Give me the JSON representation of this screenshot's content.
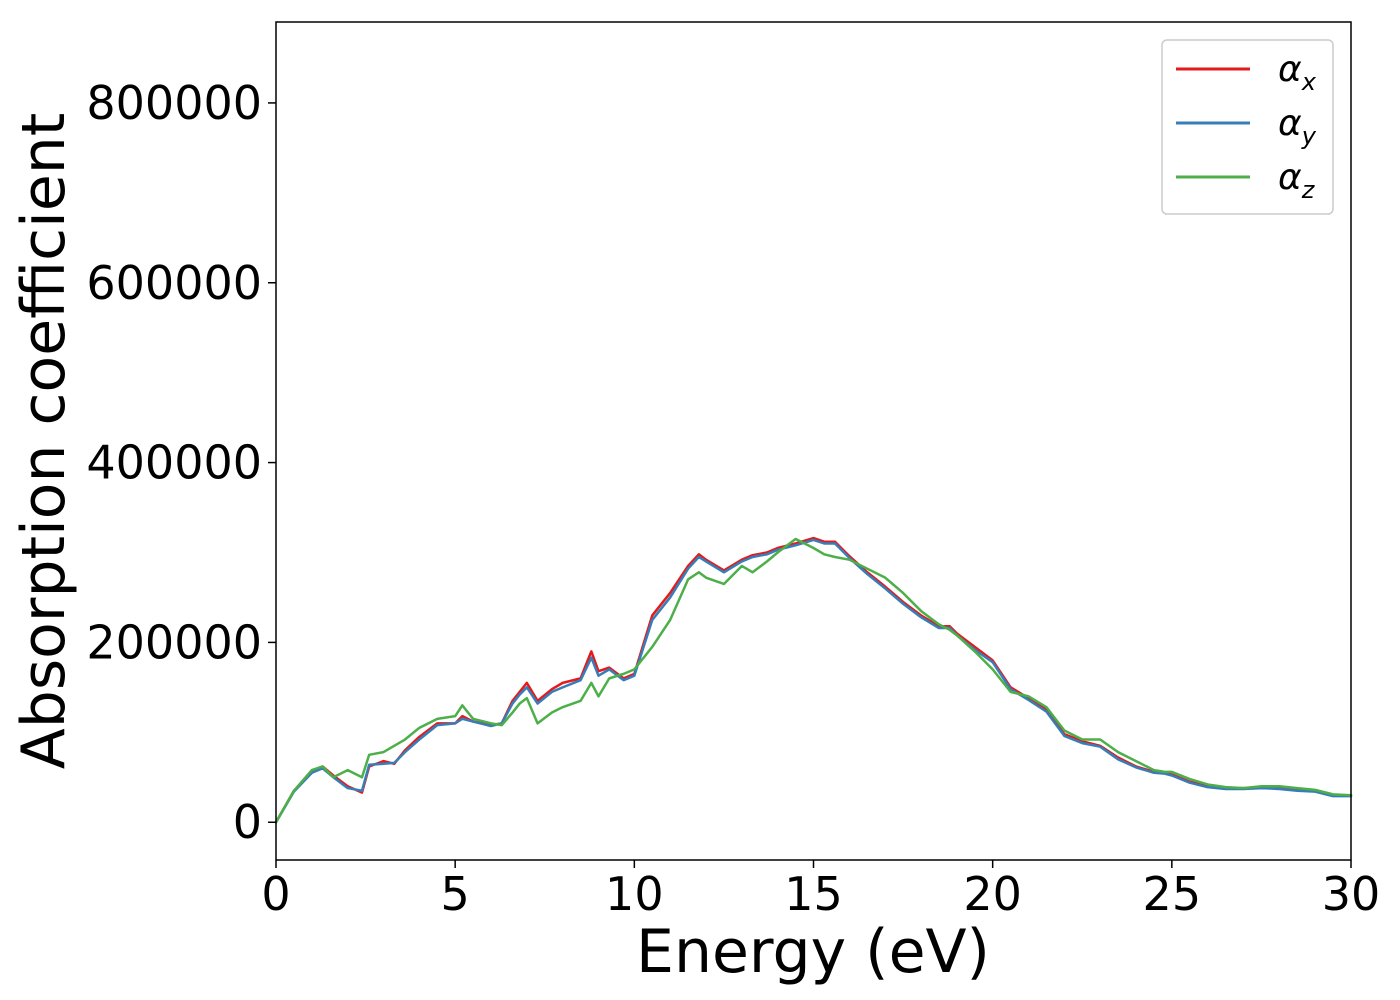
{
  "chart_data": {
    "type": "line",
    "title": "",
    "xlabel": "Energy (eV)",
    "ylabel": "Absorption coefficient",
    "xlim": [
      0,
      30
    ],
    "ylim": [
      -42000,
      890000
    ],
    "xticks": [
      0,
      5,
      10,
      15,
      20,
      25,
      30
    ],
    "yticks": [
      0,
      200000,
      400000,
      600000,
      800000
    ],
    "grid": false,
    "legend_position": "top-right",
    "x": [
      0,
      0.5,
      1,
      1.3,
      1.6,
      2,
      2.4,
      2.6,
      3,
      3.3,
      3.6,
      4,
      4.5,
      5,
      5.2,
      5.5,
      6,
      6.3,
      6.6,
      6.8,
      7,
      7.3,
      7.7,
      8,
      8.5,
      8.8,
      9,
      9.3,
      9.7,
      10,
      10.5,
      11,
      11.5,
      11.8,
      12,
      12.5,
      13,
      13.3,
      13.7,
      14,
      14.5,
      15,
      15.3,
      15.6,
      16,
      16.5,
      17,
      17.5,
      18,
      18.5,
      18.8,
      19,
      19.5,
      20,
      20.5,
      21,
      21.5,
      22,
      22.5,
      23,
      23.5,
      24,
      24.5,
      24.8,
      25,
      25.5,
      26,
      26.5,
      27,
      27.5,
      28,
      28.5,
      29,
      29.5,
      30
    ],
    "series": [
      {
        "name": "α_x",
        "symbol": "α",
        "subscript": "x",
        "color": "#e41a1c",
        "values": [
          0,
          35000,
          55000,
          62000,
          52000,
          40000,
          33000,
          62000,
          68000,
          65000,
          80000,
          95000,
          110000,
          110000,
          118000,
          112000,
          108000,
          110000,
          135000,
          145000,
          155000,
          135000,
          148000,
          155000,
          160000,
          190000,
          168000,
          172000,
          160000,
          165000,
          230000,
          255000,
          285000,
          298000,
          292000,
          280000,
          292000,
          297000,
          300000,
          305000,
          310000,
          316000,
          312000,
          312000,
          296000,
          278000,
          262000,
          245000,
          230000,
          218000,
          218000,
          210000,
          195000,
          180000,
          150000,
          138000,
          125000,
          98000,
          90000,
          85000,
          72000,
          62000,
          56000,
          55000,
          53000,
          45000,
          40000,
          38000,
          38000,
          39000,
          38000,
          36000,
          35000,
          30000,
          30000
        ]
      },
      {
        "name": "α_y",
        "symbol": "α",
        "subscript": "y",
        "color": "#377eb8",
        "values": [
          0,
          34000,
          55000,
          60000,
          50000,
          38000,
          35000,
          64000,
          65000,
          66000,
          78000,
          92000,
          108000,
          110000,
          115000,
          112000,
          107000,
          110000,
          132000,
          142000,
          150000,
          132000,
          145000,
          150000,
          158000,
          183000,
          163000,
          170000,
          158000,
          163000,
          225000,
          250000,
          282000,
          295000,
          290000,
          278000,
          290000,
          295000,
          298000,
          303000,
          308000,
          314000,
          310000,
          310000,
          294000,
          276000,
          260000,
          243000,
          228000,
          216000,
          216000,
          208000,
          192000,
          178000,
          148000,
          136000,
          123000,
          96000,
          88000,
          84000,
          70000,
          61000,
          55000,
          54000,
          52000,
          44000,
          39000,
          37000,
          37000,
          38000,
          37000,
          35000,
          34000,
          29000,
          29000
        ]
      },
      {
        "name": "α_z",
        "symbol": "α",
        "subscript": "z",
        "color": "#4daf4a",
        "values": [
          0,
          35000,
          58000,
          62000,
          50000,
          58000,
          50000,
          75000,
          78000,
          85000,
          92000,
          105000,
          115000,
          118000,
          130000,
          115000,
          110000,
          108000,
          122000,
          132000,
          138000,
          110000,
          122000,
          128000,
          135000,
          155000,
          140000,
          160000,
          165000,
          170000,
          195000,
          225000,
          270000,
          278000,
          272000,
          265000,
          285000,
          278000,
          290000,
          300000,
          315000,
          305000,
          298000,
          295000,
          292000,
          282000,
          272000,
          255000,
          235000,
          220000,
          214000,
          208000,
          190000,
          170000,
          145000,
          140000,
          128000,
          102000,
          92000,
          92000,
          78000,
          68000,
          58000,
          56000,
          56000,
          48000,
          42000,
          39000,
          38000,
          40000,
          40000,
          38000,
          36000,
          31000,
          30000
        ]
      }
    ]
  }
}
